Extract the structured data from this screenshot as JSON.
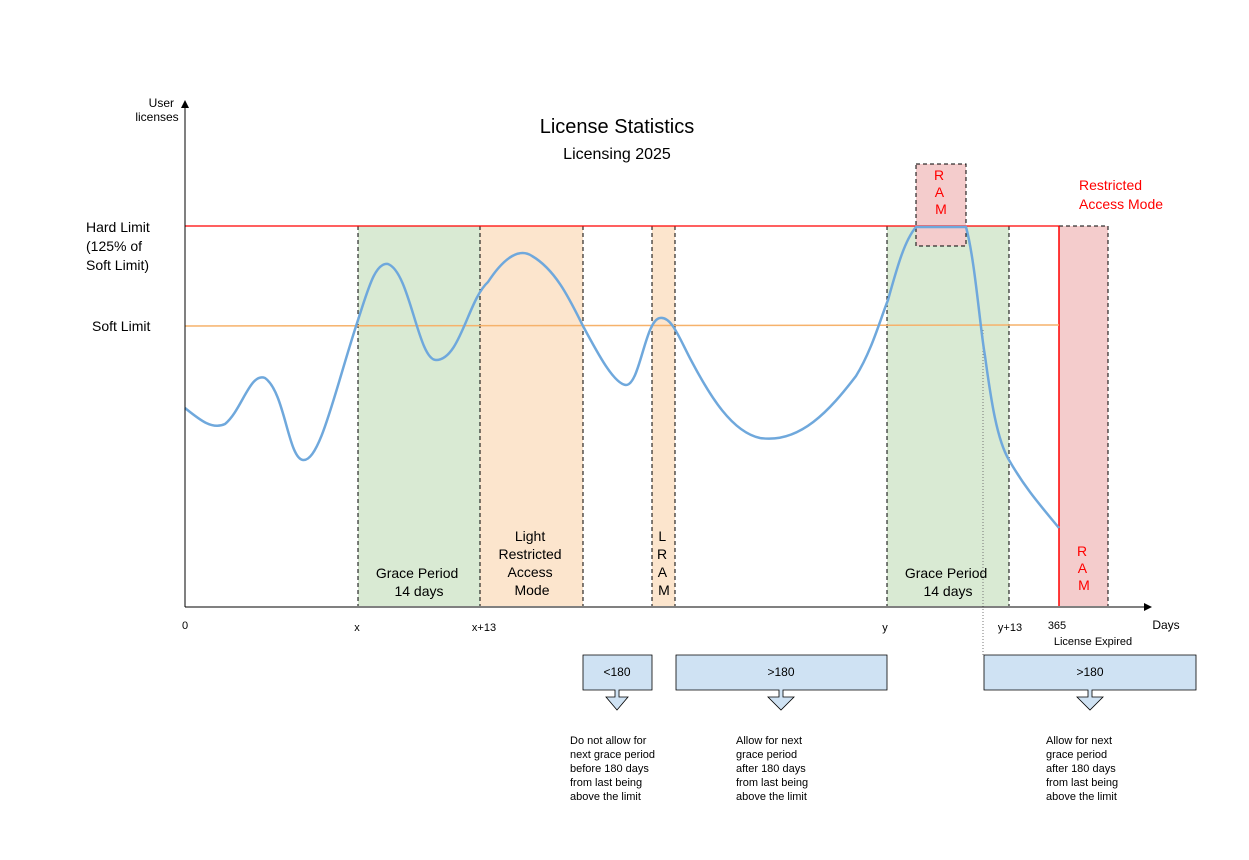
{
  "title": "License Statistics",
  "subtitle": "Licensing 2025",
  "y_axis_label": [
    "User",
    "licenses"
  ],
  "x_axis_label": "Days",
  "hard_limit_label": [
    "Hard Limit",
    "(125% of",
    "Soft Limit)"
  ],
  "soft_limit_label": "Soft Limit",
  "x_ticks": [
    "0",
    "x",
    "x+13",
    "y",
    "y+13",
    "365"
  ],
  "license_expired_label": "License Expired",
  "restricted_label": [
    "Restricted",
    "Access Mode"
  ],
  "zones": {
    "grace1": [
      "Grace Period",
      "14 days"
    ],
    "lram1": [
      "Light",
      "Restricted",
      "Access",
      "Mode"
    ],
    "lram2": [
      "L",
      "R",
      "A",
      "M"
    ],
    "grace2": [
      "Grace Period",
      "14 days"
    ],
    "ram_top": [
      "R",
      "A",
      "M"
    ],
    "ram_end": [
      "R",
      "A",
      "M"
    ]
  },
  "counters": [
    {
      "label": "<180",
      "note": [
        "Do not allow for",
        "next grace period",
        "before 180 days",
        "from last being",
        "above the limit"
      ]
    },
    {
      "label": ">180",
      "note": [
        "Allow for next",
        "grace period",
        "after 180 days",
        "from last being",
        "above the limit"
      ]
    },
    {
      "label": ">180",
      "note": [
        "Allow for next",
        "grace period",
        "after 180 days",
        "from last being",
        "above the limit"
      ]
    }
  ],
  "colors": {
    "grace": "#d9ead3",
    "lram": "#fce5cd",
    "ram": "#f4cccc",
    "curve": "#6fa8dc",
    "hard_limit": "#ff0000",
    "soft_limit": "#f6b26b",
    "counter_box": "#cfe2f3"
  }
}
